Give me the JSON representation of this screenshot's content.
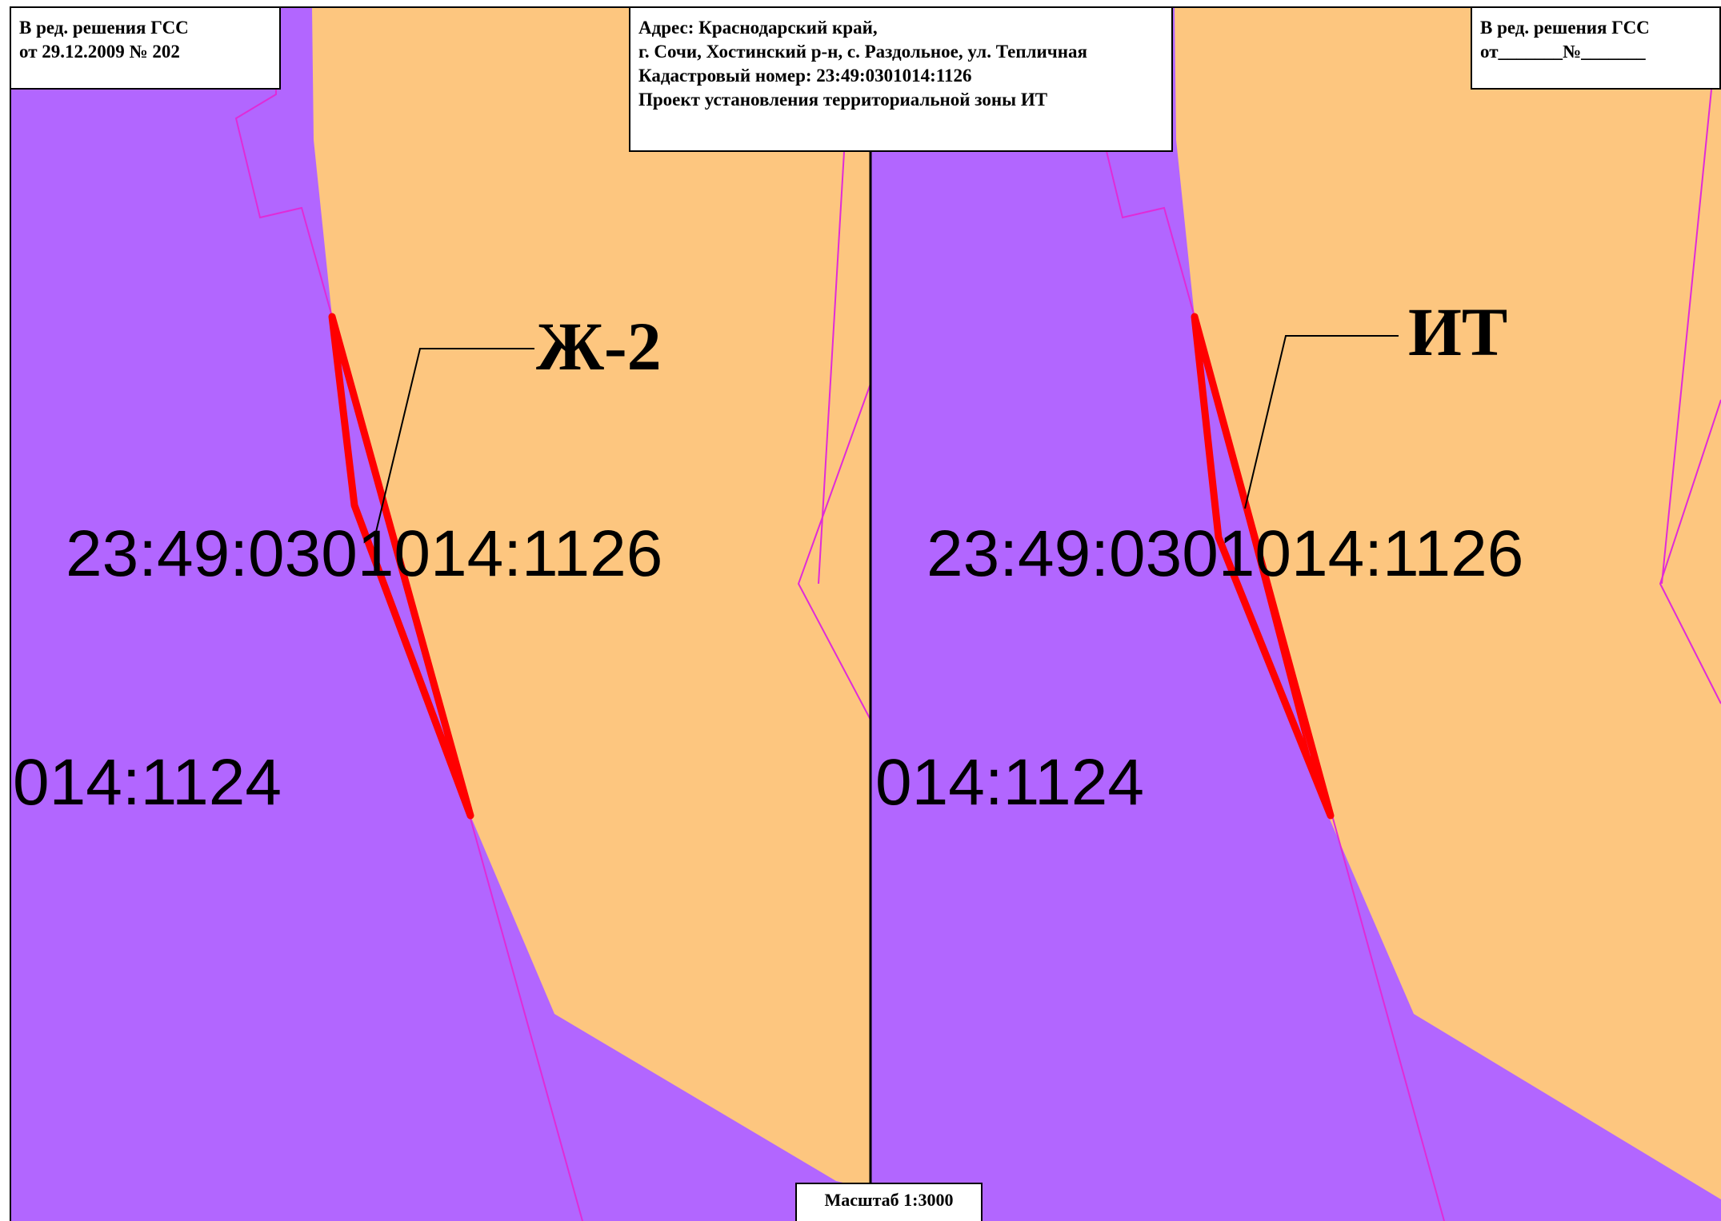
{
  "colors": {
    "residential_zone": "#b266ff",
    "other_zone": "#fdc67f",
    "boundary_line": "#e02bd8",
    "highlight": "#ff0000",
    "panel_divider": "#000000"
  },
  "left_panel": {
    "edition_box": {
      "line1": "В ред. решения ГСС",
      "line2": "от 29.12.2009 № 202"
    },
    "zone_label": "Ж-2",
    "parcel_main": "23:49:0301014:1126",
    "parcel_neighbor": "014:1124"
  },
  "right_panel": {
    "edition_box": {
      "line1": "В ред. решения ГСС",
      "line2": "от_______№_______"
    },
    "zone_label": "ИТ",
    "parcel_main": "23:49:0301014:1126",
    "parcel_neighbor": "014:1124"
  },
  "title_box": {
    "line1": "Адрес: Краснодарский край,",
    "line2": "г. Сочи, Хостинский р-н, с. Раздольное, ул. Тепличная",
    "line3": "Кадастровый номер:  23:49:0301014:1126",
    "line4": "Проект установления территориальной зоны ИТ"
  },
  "scale_label": "Масштаб 1:3000"
}
